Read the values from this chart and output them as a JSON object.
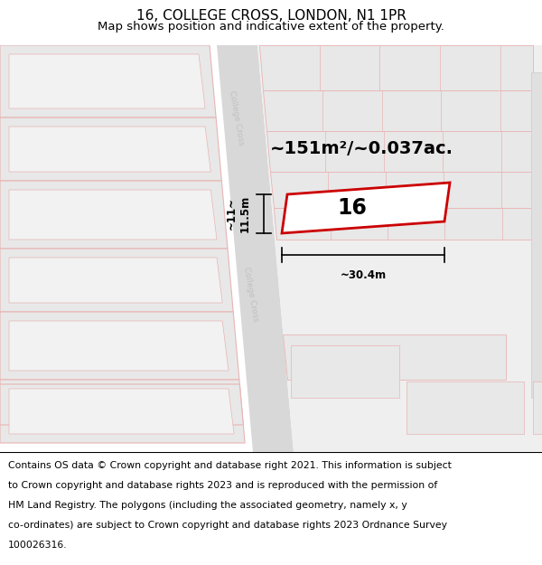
{
  "title": "16, COLLEGE CROSS, LONDON, N1 1PR",
  "subtitle": "Map shows position and indicative extent of the property.",
  "area_text": "~151m²/~0.037ac.",
  "property_number": "16",
  "dim_width": "~30.4m",
  "dim_height": "~11~\n11.5m",
  "footer_lines": [
    "Contains OS data © Crown copyright and database right 2021. This information is subject",
    "to Crown copyright and database rights 2023 and is reproduced with the permission of",
    "HM Land Registry. The polygons (including the associated geometry, namely x, y",
    "co-ordinates) are subject to Crown copyright and database rights 2023 Ordnance Survey",
    "100026316."
  ],
  "map_bg": "#ffffff",
  "building_fill": "#e8e8e8",
  "building_outline": "#e8b4b4",
  "road_fill": "#d8d8d8",
  "road_edge": "#cccccc",
  "right_road_fill": "#d0d0d0",
  "property_outline": "#cc0000",
  "property_fill": "#ffffff",
  "street_label_color": "#c0c0c0",
  "title_fontsize": 11,
  "subtitle_fontsize": 9.5,
  "footer_fontsize": 7.8,
  "area_fontsize": 14,
  "prop_num_fontsize": 17,
  "dim_fontsize": 8.5
}
